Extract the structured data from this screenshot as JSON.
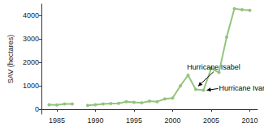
{
  "chart_data": {
    "type": "line",
    "y_label": "SAV (hectares)",
    "x": [
      1984,
      1985,
      1986,
      1987,
      1988,
      1989,
      1990,
      1991,
      1992,
      1993,
      1994,
      1995,
      1996,
      1997,
      1998,
      1999,
      2000,
      2001,
      2002,
      2003,
      2004,
      2005,
      2006,
      2007,
      2008,
      2009,
      2010
    ],
    "values": [
      200,
      190,
      230,
      230,
      null,
      170,
      200,
      230,
      250,
      260,
      330,
      300,
      280,
      350,
      330,
      450,
      480,
      1000,
      1460,
      850,
      820,
      1750,
      1580,
      3080,
      4300,
      4260,
      4230
    ],
    "color": "#93c47d",
    "marker": "circle",
    "line_style": "solid",
    "xlim": [
      1983,
      2011
    ],
    "xticks": [
      1985,
      1990,
      1995,
      2000,
      2005,
      2010
    ],
    "ylim": [
      -200,
      4500
    ],
    "yticks": [
      0,
      1000,
      2000,
      3000,
      4000
    ],
    "grid": false,
    "annotations": [
      {
        "text": "Hurricane Isabel",
        "x": 2003,
        "y": 850
      },
      {
        "text": "Hurricane Ivan",
        "x": 2004,
        "y": 820
      }
    ]
  }
}
